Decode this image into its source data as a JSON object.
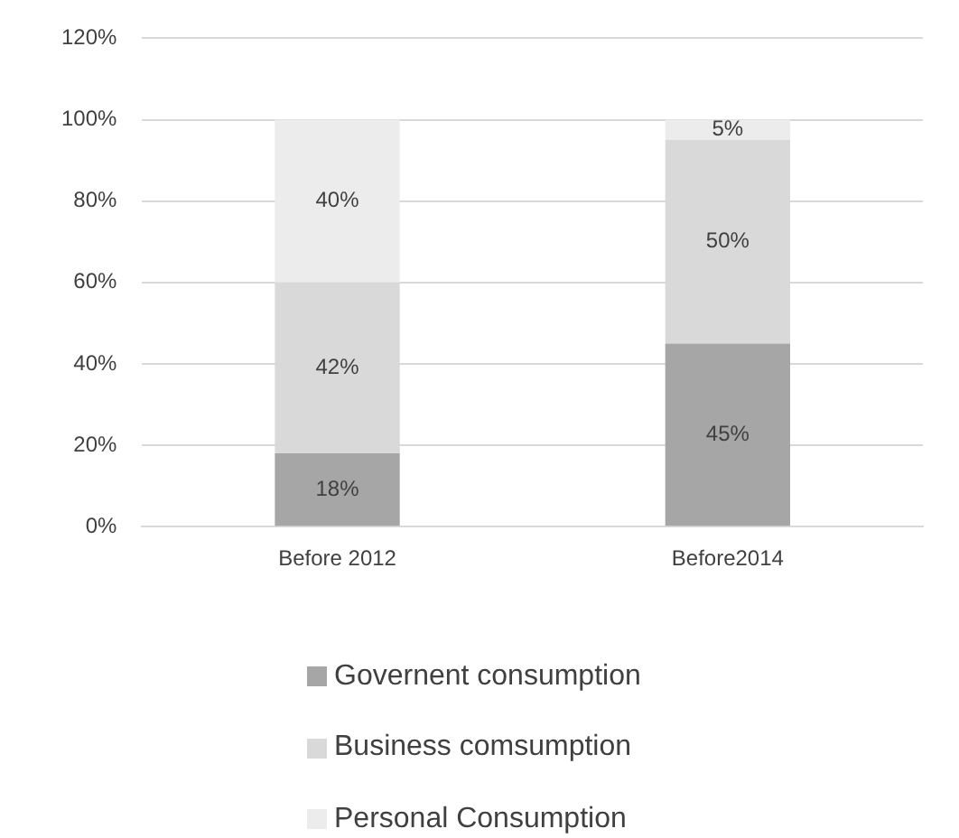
{
  "chart_data": {
    "type": "bar",
    "stacked": true,
    "categories": [
      "Before 2012",
      "Before2014"
    ],
    "series": [
      {
        "name": "Governent consumption",
        "color": "#a6a6a6",
        "values": [
          18,
          45
        ],
        "value_labels": [
          "18%",
          "45%"
        ]
      },
      {
        "name": "Business comsumption",
        "color": "#d9d9d9",
        "values": [
          42,
          50
        ],
        "value_labels": [
          "42%",
          "50%"
        ]
      },
      {
        "name": "Personal Consumption",
        "color": "#ececec",
        "values": [
          40,
          5
        ],
        "value_labels": [
          "40%",
          "5%"
        ]
      }
    ],
    "ylim": [
      0,
      120
    ],
    "yticks": [
      {
        "value": 0,
        "label": "0%"
      },
      {
        "value": 20,
        "label": "20%"
      },
      {
        "value": 40,
        "label": "40%"
      },
      {
        "value": 60,
        "label": "60%"
      },
      {
        "value": 80,
        "label": "80%"
      },
      {
        "value": 100,
        "label": "100%"
      },
      {
        "value": 120,
        "label": "120%"
      }
    ],
    "grid": "y",
    "legend": "bottom"
  }
}
